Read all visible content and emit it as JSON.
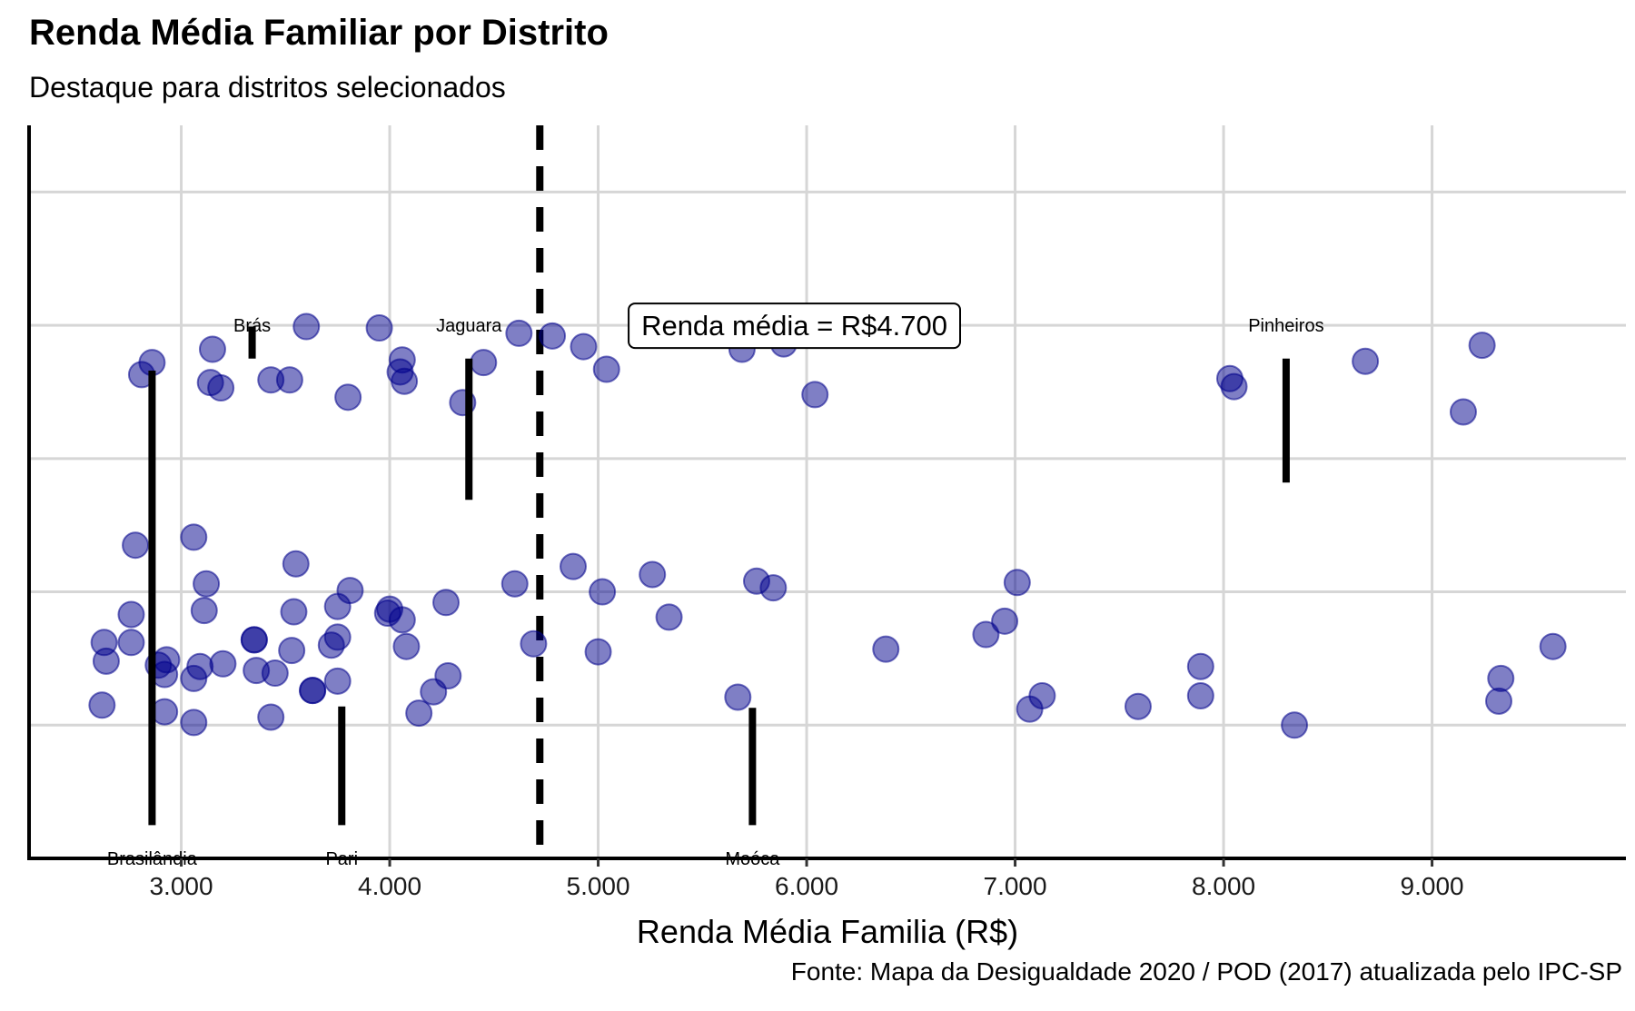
{
  "chart_data": {
    "type": "scatter",
    "title": "Renda Média Familiar por Distrito",
    "subtitle": "Destaque para distritos selecionados",
    "xlabel": "Renda Média Familia (R$)",
    "ylabel": "",
    "caption": "Fonte: Mapa da Desigualdade 2020 / POD (2017) atualizada pelo IPC-SP",
    "xlim": [
      2270,
      9930
    ],
    "ylim": [
      0,
      5.5
    ],
    "x_ticks": [
      3000,
      4000,
      5000,
      6000,
      7000,
      8000,
      9000
    ],
    "x_tick_labels": [
      "3.000",
      "4.000",
      "5.000",
      "6.000",
      "7.000",
      "8.000",
      "9.000"
    ],
    "y_gridlines": [
      1,
      2,
      3,
      4,
      5
    ],
    "grid": true,
    "point_color": "#00008B",
    "point_opacity": 0.5,
    "mean_line": {
      "x": 4720,
      "style": "dashed",
      "label": "Renda média = R$4.700"
    },
    "annotation_box": {
      "x": 5000,
      "y": 4.0
    },
    "highlighted": [
      {
        "name": "Brás",
        "x": 3340,
        "y": 3.99,
        "label_y": 4.0,
        "segment_from": 3.75
      },
      {
        "name": "Jaguara",
        "x": 4380,
        "y": 2.69,
        "label_y": 4.0,
        "segment_from": 3.75
      },
      {
        "name": "Pinheiros",
        "x": 8300,
        "y": 2.82,
        "label_y": 4.0,
        "segment_from": 3.75
      },
      {
        "name": "Brasilândia",
        "x": 2860,
        "y": 3.66,
        "label_y": 0.0,
        "segment_from": 0.25
      },
      {
        "name": "Pari",
        "x": 3770,
        "y": 1.14,
        "label_y": 0.0,
        "segment_from": 0.25
      },
      {
        "name": "Moóca",
        "x": 5740,
        "y": 1.13,
        "label_y": 0.0,
        "segment_from": 0.25
      }
    ],
    "points": [
      [
        2620,
        1.15
      ],
      [
        2630,
        1.62
      ],
      [
        2640,
        1.48
      ],
      [
        2760,
        1.62
      ],
      [
        2760,
        1.83
      ],
      [
        2780,
        2.35
      ],
      [
        2810,
        3.63
      ],
      [
        2860,
        3.72
      ],
      [
        2890,
        1.45
      ],
      [
        2920,
        1.38
      ],
      [
        2930,
        1.49
      ],
      [
        2920,
        1.1
      ],
      [
        3060,
        1.35
      ],
      [
        3060,
        1.02
      ],
      [
        3060,
        2.41
      ],
      [
        3090,
        1.44
      ],
      [
        3110,
        1.86
      ],
      [
        3120,
        2.06
      ],
      [
        3140,
        3.57
      ],
      [
        3150,
        3.82
      ],
      [
        3190,
        3.53
      ],
      [
        3200,
        1.46
      ],
      [
        3350,
        1.64
      ],
      [
        3350,
        1.64
      ],
      [
        3360,
        1.41
      ],
      [
        3430,
        3.59
      ],
      [
        3430,
        1.06
      ],
      [
        3450,
        1.39
      ],
      [
        3520,
        3.59
      ],
      [
        3530,
        1.56
      ],
      [
        3540,
        1.85
      ],
      [
        3550,
        2.21
      ],
      [
        3600,
        3.99
      ],
      [
        3630,
        1.26
      ],
      [
        3630,
        1.26
      ],
      [
        3720,
        1.6
      ],
      [
        3750,
        1.66
      ],
      [
        3750,
        1.89
      ],
      [
        3750,
        1.33
      ],
      [
        3810,
        2.01
      ],
      [
        3800,
        3.46
      ],
      [
        3950,
        3.98
      ],
      [
        3990,
        1.84
      ],
      [
        4000,
        1.87
      ],
      [
        4060,
        1.79
      ],
      [
        4060,
        3.74
      ],
      [
        4050,
        3.65
      ],
      [
        4070,
        3.58
      ],
      [
        4080,
        1.59
      ],
      [
        4140,
        1.09
      ],
      [
        4210,
        1.25
      ],
      [
        4270,
        1.92
      ],
      [
        4280,
        1.37
      ],
      [
        4350,
        3.42
      ],
      [
        4450,
        3.72
      ],
      [
        4600,
        2.06
      ],
      [
        4620,
        3.94
      ],
      [
        4690,
        1.61
      ],
      [
        4780,
        3.92
      ],
      [
        4880,
        2.19
      ],
      [
        4930,
        3.84
      ],
      [
        5000,
        1.55
      ],
      [
        5020,
        2.0
      ],
      [
        5040,
        3.67
      ],
      [
        5260,
        2.13
      ],
      [
        5340,
        1.81
      ],
      [
        5670,
        1.21
      ],
      [
        5690,
        3.82
      ],
      [
        5760,
        2.08
      ],
      [
        5840,
        2.03
      ],
      [
        5890,
        3.86
      ],
      [
        6040,
        3.48
      ],
      [
        6380,
        1.57
      ],
      [
        6860,
        1.68
      ],
      [
        6950,
        1.78
      ],
      [
        7010,
        2.07
      ],
      [
        7070,
        1.12
      ],
      [
        7130,
        1.22
      ],
      [
        7590,
        1.14
      ],
      [
        7890,
        1.44
      ],
      [
        7890,
        1.22
      ],
      [
        8030,
        3.6
      ],
      [
        8050,
        3.54
      ],
      [
        8340,
        1.0
      ],
      [
        8680,
        3.73
      ],
      [
        9150,
        3.35
      ],
      [
        9240,
        3.85
      ],
      [
        9320,
        1.18
      ],
      [
        9330,
        1.35
      ],
      [
        9580,
        1.59
      ]
    ]
  }
}
